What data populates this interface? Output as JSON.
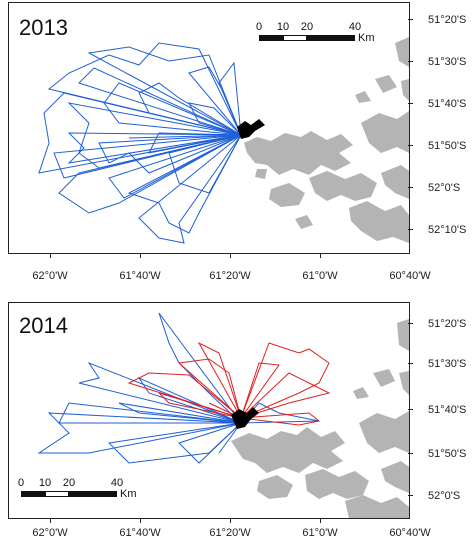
{
  "panels": [
    {
      "year": "2013",
      "lat_labels": [
        "51°20'S",
        "51°30'S",
        "51°40'S",
        "51°50'S",
        "52°0'S",
        "52°10'S"
      ],
      "lon_labels": [
        "62°0'W",
        "61°40'W",
        "61°20'W",
        "61°0'W",
        "60°40'W"
      ],
      "scale": {
        "ticks": [
          "0",
          "10",
          "20",
          "40"
        ],
        "unit": "Km"
      },
      "tracks": [
        {
          "color": "#1f5fd6",
          "count": 1
        }
      ]
    },
    {
      "year": "2014",
      "lat_labels": [
        "51°20'S",
        "51°30'S",
        "51°40'S",
        "51°50'S",
        "52°0'S"
      ],
      "lon_labels": [
        "62°0'W",
        "61°40'W",
        "61°20'W",
        "61°0'W",
        "60°40'W"
      ],
      "scale": {
        "ticks": [
          "0",
          "10",
          "20",
          "40"
        ],
        "unit": "Km"
      },
      "tracks": [
        {
          "color": "#1f5fd6",
          "count": 1
        },
        {
          "color": "#e02020",
          "count": 1
        }
      ]
    }
  ],
  "colors": {
    "land": "#b4b4b4",
    "colony": "#000000",
    "blue_track": "#1f5fd6",
    "red_track": "#e02020"
  }
}
